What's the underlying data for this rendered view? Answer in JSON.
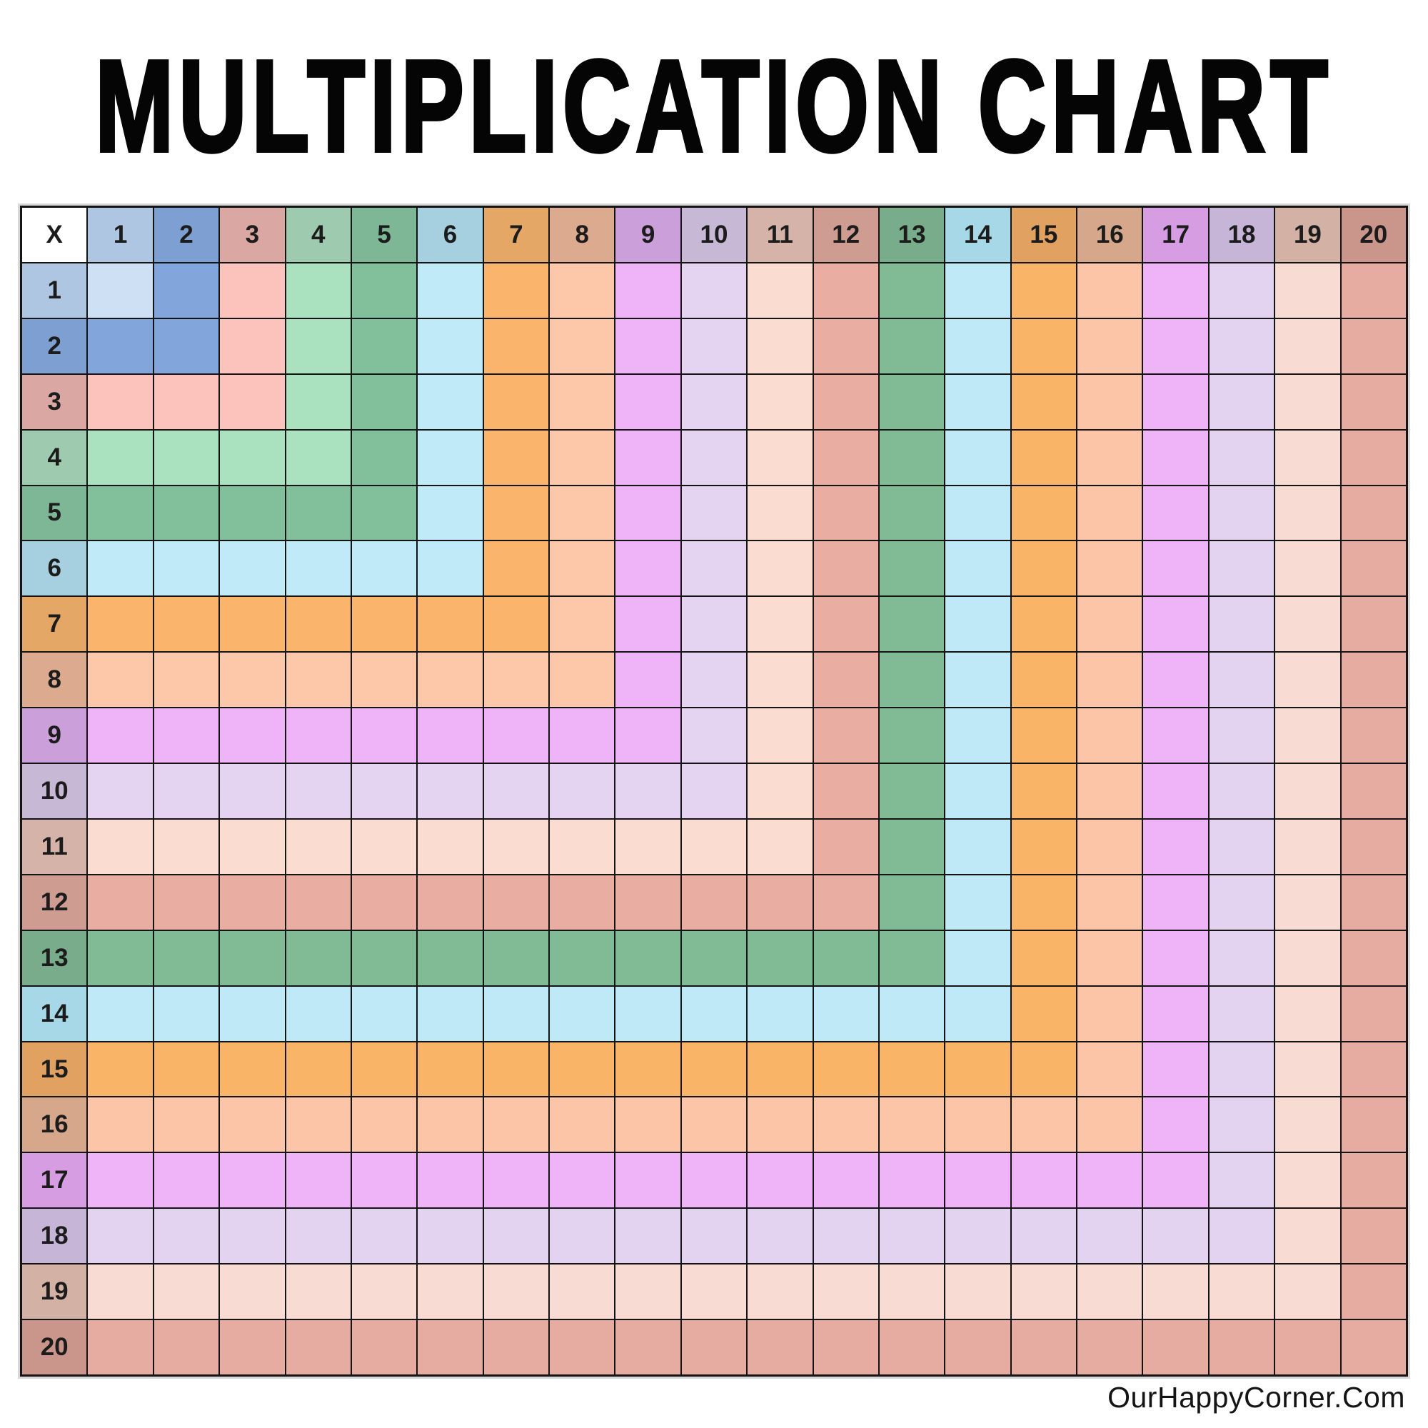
{
  "title": "MULTIPLICATION CHART",
  "footer": {
    "credit": "OurHappyCorner.Com"
  },
  "chart_data": {
    "type": "table",
    "title": "MULTIPLICATION CHART",
    "corner_label": "X",
    "column_headers": [
      1,
      2,
      3,
      4,
      5,
      6,
      7,
      8,
      9,
      10,
      11,
      12,
      13,
      14,
      15,
      16,
      17,
      18,
      19,
      20
    ],
    "row_headers": [
      1,
      2,
      3,
      4,
      5,
      6,
      7,
      8,
      9,
      10,
      11,
      12,
      13,
      14,
      15,
      16,
      17,
      18,
      19,
      20
    ],
    "cells_contain_numbers": false,
    "cell_color_rule": "Each body cell is filled with the pastel band color of max(row, column), producing nested L-shaped color bands; header cells use a darker variant of the same band color; corner cell is white.",
    "band_header_colors": {
      "1": "#aec6e1",
      "2": "#7d9fd1",
      "3": "#dba7a2",
      "4": "#9ecbaf",
      "5": "#7db795",
      "6": "#a6d0e0",
      "7": "#e5a766",
      "8": "#dcaa8e",
      "9": "#cb9fda",
      "10": "#c7b8d6",
      "11": "#d5b3a8",
      "12": "#ce9c90",
      "13": "#79ac8b",
      "14": "#a7d8e8",
      "15": "#e1a261",
      "16": "#d7a78c",
      "17": "#d69de2",
      "18": "#c6b5d7",
      "19": "#d3b2a5",
      "20": "#ca958a"
    },
    "band_cell_colors": {
      "1": "#cde0f4",
      "2": "#82a5db",
      "3": "#fcc3bc",
      "4": "#aae1bf",
      "5": "#82c09b",
      "6": "#c0eaf7",
      "7": "#fbb46b",
      "8": "#fdc7a9",
      "9": "#efb4f8",
      "10": "#e5d4f1",
      "11": "#fadcd0",
      "12": "#e9ada1",
      "13": "#80bb96",
      "14": "#bfe9f6",
      "15": "#fab468",
      "16": "#fcc5a7",
      "17": "#efb4f8",
      "18": "#e4d2f1",
      "19": "#f8dbd2",
      "20": "#e6aca1"
    },
    "grid_line_color": "#141414",
    "corner_background": "#ffffff",
    "legend": "none",
    "layout": "21x21 grid: header row on top, header column on left"
  }
}
